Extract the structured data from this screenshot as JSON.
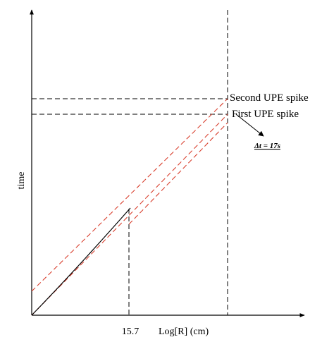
{
  "diagram": {
    "y_axis_label": "time",
    "x_tick_label": "15.7",
    "x_axis_label": "Log[R] (cm)",
    "second_spike_label": "Second UPE spike",
    "first_spike_label": "First UPE spike",
    "delta_t_label": "Δt = 17s",
    "colors": {
      "axes": "#000000",
      "guide_lines": "#000000",
      "extrapolation_lines": "#d9402f",
      "solid_curve": "#000000"
    }
  }
}
